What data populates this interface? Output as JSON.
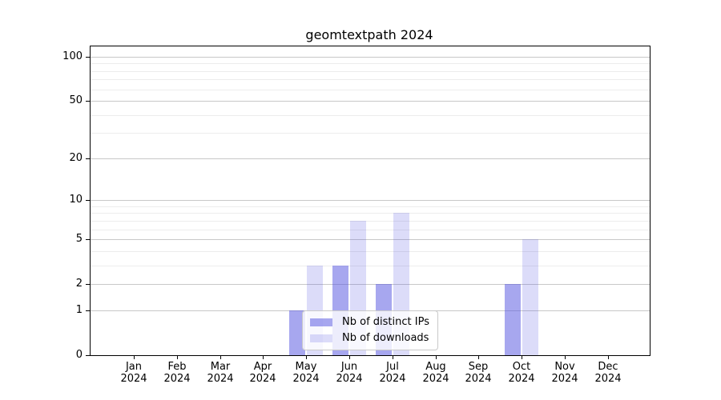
{
  "chart_data": {
    "type": "bar",
    "title": "geomtextpath 2024",
    "categories": [
      "Jan",
      "Feb",
      "Mar",
      "Apr",
      "May",
      "Jun",
      "Jul",
      "Aug",
      "Sep",
      "Oct",
      "Nov",
      "Dec"
    ],
    "year_label": "2024",
    "series": [
      {
        "name": "Nb of distinct IPs",
        "color": "rgba(80,80,224,0.5)",
        "values": [
          0,
          0,
          0,
          0,
          1,
          3,
          2,
          0,
          0,
          2,
          0,
          0
        ]
      },
      {
        "name": "Nb of downloads",
        "color": "rgba(80,80,224,0.2)",
        "values": [
          0,
          0,
          0,
          0,
          3,
          7,
          8,
          0,
          0,
          5,
          0,
          0
        ]
      }
    ],
    "xlabel": "",
    "ylabel": "",
    "yscale": "log1p",
    "yticks_major": [
      0,
      1,
      2,
      5,
      10,
      20,
      50,
      100
    ],
    "yticks_minor": [
      3,
      4,
      6,
      7,
      8,
      9,
      30,
      40,
      60,
      70,
      80,
      90
    ],
    "ylim": [
      0,
      118
    ],
    "grid": "horizontal",
    "legend_position": "lower center",
    "colors": {
      "major_grid": "#c8c8c8",
      "minor_grid": "#ececec",
      "axis": "#000000",
      "text": "#000000",
      "background": "#ffffff"
    }
  }
}
